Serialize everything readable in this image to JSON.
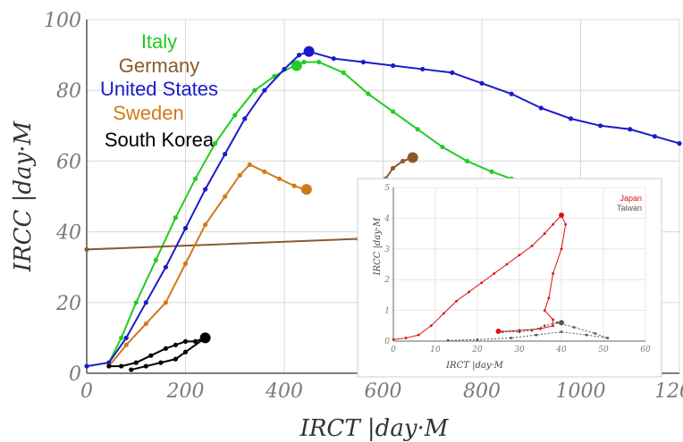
{
  "chart_data": [
    {
      "type": "line",
      "xlabel": "IRCT |day·M",
      "ylabel": "IRCC |day·M",
      "xlim": [
        0,
        1200
      ],
      "ylim": [
        0,
        100
      ],
      "x_ticks": [
        "0",
        "200",
        "400",
        "600",
        "800",
        "1000",
        "1200"
      ],
      "y_ticks": [
        "0",
        "20",
        "40",
        "60",
        "80",
        "100"
      ],
      "grid": true,
      "legend_position": "top-left",
      "series": [
        {
          "name": "Italy",
          "color": "#22cc22",
          "points": [
            [
              45,
              3
            ],
            [
              70,
              10
            ],
            [
              100,
              20
            ],
            [
              140,
              32
            ],
            [
              180,
              44
            ],
            [
              220,
              55
            ],
            [
              260,
              65
            ],
            [
              300,
              73
            ],
            [
              340,
              80
            ],
            [
              380,
              84
            ],
            [
              420,
              87
            ],
            [
              440,
              88
            ],
            [
              470,
              88
            ],
            [
              520,
              85
            ],
            [
              570,
              79
            ],
            [
              620,
              74
            ],
            [
              670,
              69
            ],
            [
              720,
              64
            ],
            [
              770,
              60
            ],
            [
              820,
              57
            ],
            [
              860,
              55
            ]
          ],
          "end": [
            425,
            87
          ]
        },
        {
          "name": "Germany",
          "color": "#8b5a2b",
          "points": [
            [
              0,
              35
            ],
            [
              550,
              38
            ],
            [
              560,
              40
            ],
            [
              575,
              45
            ],
            [
              590,
              50
            ],
            [
              605,
              55
            ],
            [
              620,
              58
            ],
            [
              640,
              60
            ],
            [
              660,
              61
            ]
          ],
          "end": [
            660,
            61
          ],
          "extra": [
            [
              650,
              25
            ],
            [
              650,
              5
            ],
            [
              590,
              5
            ]
          ]
        },
        {
          "name": "United States",
          "color": "#1a1acc",
          "points": [
            [
              0,
              2
            ],
            [
              45,
              3
            ],
            [
              80,
              10
            ],
            [
              120,
              20
            ],
            [
              160,
              30
            ],
            [
              200,
              41
            ],
            [
              240,
              52
            ],
            [
              280,
              62
            ],
            [
              320,
              72
            ],
            [
              360,
              80
            ],
            [
              400,
              86
            ],
            [
              430,
              90
            ],
            [
              450,
              91
            ],
            [
              500,
              89
            ],
            [
              560,
              88
            ],
            [
              620,
              87
            ],
            [
              680,
              86
            ],
            [
              740,
              85
            ],
            [
              800,
              82
            ],
            [
              860,
              79
            ],
            [
              920,
              75
            ],
            [
              980,
              72
            ],
            [
              1040,
              70
            ],
            [
              1100,
              69
            ],
            [
              1150,
              67
            ],
            [
              1200,
              65
            ]
          ],
          "end": [
            450,
            91
          ]
        },
        {
          "name": "Sweden",
          "color": "#d07a1a",
          "points": [
            [
              45,
              2
            ],
            [
              80,
              8
            ],
            [
              120,
              14
            ],
            [
              160,
              20
            ],
            [
              200,
              31
            ],
            [
              240,
              42
            ],
            [
              280,
              50
            ],
            [
              310,
              56
            ],
            [
              330,
              59
            ],
            [
              360,
              57
            ],
            [
              390,
              55
            ],
            [
              420,
              53
            ],
            [
              440,
              52
            ]
          ],
          "end": [
            445,
            52
          ]
        },
        {
          "name": "South Korea",
          "color": "#000000",
          "points": [
            [
              45,
              2
            ],
            [
              70,
              2
            ],
            [
              100,
              3
            ],
            [
              130,
              5
            ],
            [
              160,
              7
            ],
            [
              180,
              8
            ],
            [
              200,
              9
            ],
            [
              220,
              9
            ],
            [
              240,
              10
            ],
            [
              200,
              6
            ],
            [
              180,
              4
            ],
            [
              150,
              3
            ],
            [
              120,
              2
            ],
            [
              90,
              1
            ]
          ],
          "end": [
            240,
            10
          ]
        }
      ]
    },
    {
      "type": "line",
      "xlabel": "IRCT |day·M",
      "ylabel": "IRCC |day·M",
      "xlim": [
        0,
        60
      ],
      "ylim": [
        0,
        5
      ],
      "x_ticks": [
        "0",
        "10",
        "20",
        "30",
        "40",
        "50",
        "60"
      ],
      "y_ticks": [
        "0",
        "1",
        "2",
        "3",
        "4",
        "5"
      ],
      "grid": true,
      "legend_position": "top-right",
      "series": [
        {
          "name": "Japan",
          "color": "#dd1111",
          "points": [
            [
              0,
              0.05
            ],
            [
              3,
              0.1
            ],
            [
              6,
              0.2
            ],
            [
              9,
              0.5
            ],
            [
              12,
              0.9
            ],
            [
              15,
              1.3
            ],
            [
              18,
              1.6
            ],
            [
              21,
              1.9
            ],
            [
              24,
              2.2
            ],
            [
              27,
              2.5
            ],
            [
              30,
              2.8
            ],
            [
              33,
              3.1
            ],
            [
              36,
              3.5
            ],
            [
              38,
              3.8
            ],
            [
              40,
              4.1
            ],
            [
              41,
              3.8
            ],
            [
              40,
              3.0
            ],
            [
              38,
              2.2
            ],
            [
              37,
              1.4
            ],
            [
              36,
              1.0
            ],
            [
              38,
              0.7
            ],
            [
              38,
              0.5
            ],
            [
              35,
              0.4
            ],
            [
              30,
              0.35
            ],
            [
              25,
              0.3
            ]
          ],
          "end": [
            40,
            4.1
          ],
          "start": [
            25,
            0.32
          ]
        },
        {
          "name": "Taiwan",
          "color": "#555555",
          "points": [
            [
              13,
              0.02
            ],
            [
              20,
              0.05
            ],
            [
              28,
              0.1
            ],
            [
              34,
              0.2
            ],
            [
              40,
              0.3
            ],
            [
              46,
              0.2
            ],
            [
              51,
              0.1
            ],
            [
              48,
              0.25
            ],
            [
              43,
              0.45
            ],
            [
              39,
              0.6
            ],
            [
              36,
              0.5
            ],
            [
              33,
              0.35
            ],
            [
              30,
              0.3
            ],
            [
              26,
              0.3
            ]
          ],
          "end": [
            40,
            0.6
          ]
        }
      ]
    }
  ]
}
